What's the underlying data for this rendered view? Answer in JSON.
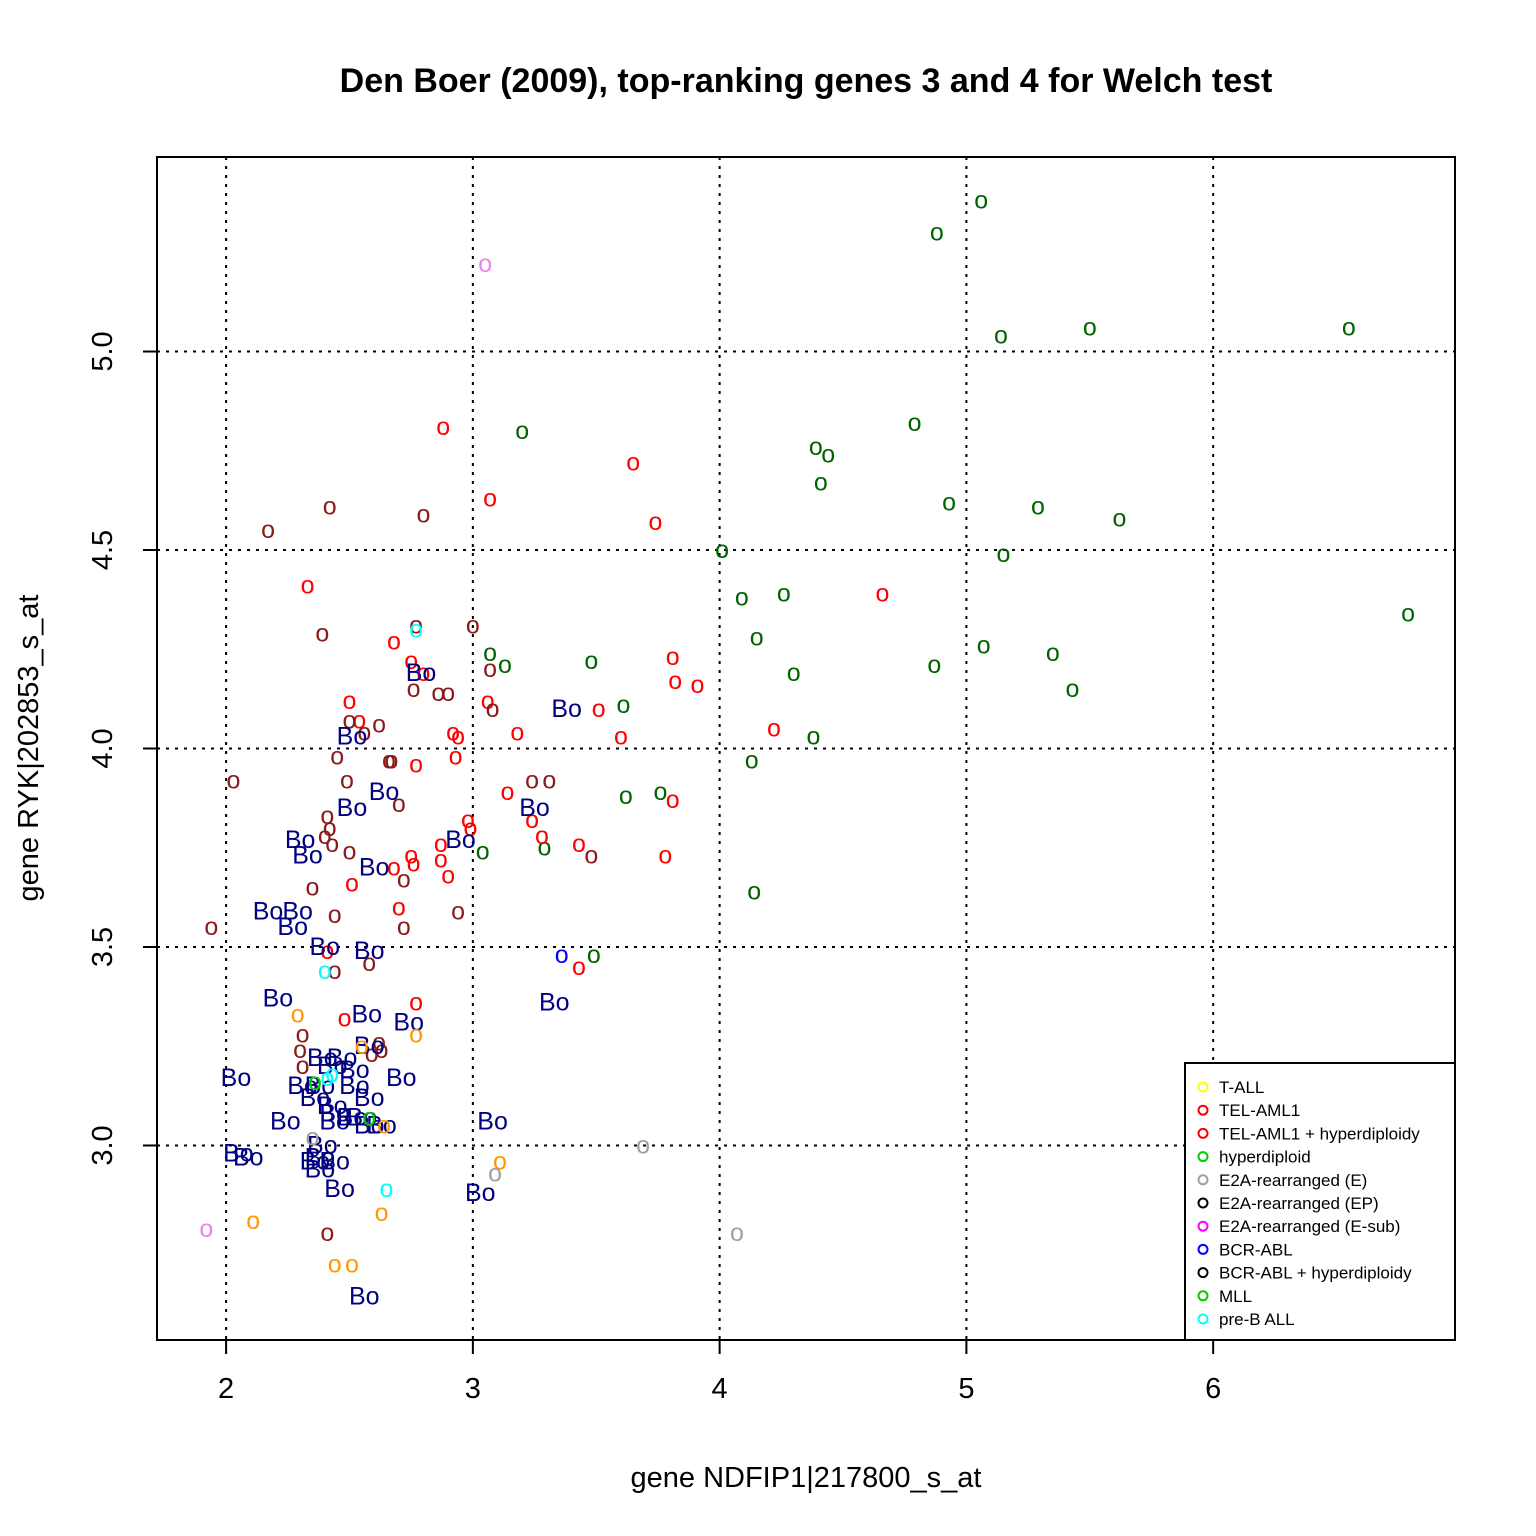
{
  "chart_data": {
    "type": "scatter",
    "title": "Den Boer (2009), top-ranking genes 3 and 4 for Welch test",
    "xlabel": "gene NDFIP1|217800_s_at",
    "ylabel": "gene RYK|202853_s_at",
    "xlim": [
      1.72,
      6.98
    ],
    "ylim": [
      2.51,
      5.49
    ],
    "xticks": [
      "2",
      "3",
      "4",
      "5",
      "6"
    ],
    "yticks": [
      "3.0",
      "3.5",
      "4.0",
      "4.5",
      "5.0"
    ],
    "grid": true,
    "legend_position": "bottom-right",
    "colors": {
      "darkgreen": "#006400",
      "red": "#ff0000",
      "brown": "#8b1a1a",
      "navy": "#000080",
      "orange": "#ff9900",
      "cyan": "#00ffff",
      "gray": "#a0a0a0",
      "violet": "#ee82ee",
      "blue": "#0000ff",
      "green": "#00cc00"
    },
    "legend": [
      {
        "label": "T-ALL",
        "color": "#ffff00"
      },
      {
        "label": "TEL-AML1",
        "color": "#ff0000"
      },
      {
        "label": "TEL-AML1 + hyperdiploidy",
        "color": "#ff0000"
      },
      {
        "label": "hyperdiploid",
        "color": "#00cc00"
      },
      {
        "label": "E2A-rearranged (E)",
        "color": "#a0a0a0"
      },
      {
        "label": "E2A-rearranged (EP)",
        "color": "#000000"
      },
      {
        "label": "E2A-rearranged (E-sub)",
        "color": "#ff00ff"
      },
      {
        "label": "BCR-ABL",
        "color": "#0000ff"
      },
      {
        "label": "BCR-ABL + hyperdiploidy",
        "color": "#000000"
      },
      {
        "label": "MLL",
        "color": "#00cc00"
      },
      {
        "label": "pre-B ALL",
        "color": "#00ffff"
      }
    ],
    "series": [
      {
        "marker": "o",
        "color": "darkgreen",
        "points": [
          [
            5.06,
            5.38
          ],
          [
            4.88,
            5.3
          ],
          [
            5.14,
            5.04
          ],
          [
            5.5,
            5.06
          ],
          [
            6.55,
            5.06
          ],
          [
            3.2,
            4.8
          ],
          [
            4.79,
            4.82
          ],
          [
            4.39,
            4.76
          ],
          [
            4.44,
            4.74
          ],
          [
            4.41,
            4.67
          ],
          [
            4.93,
            4.62
          ],
          [
            5.29,
            4.61
          ],
          [
            5.62,
            4.58
          ],
          [
            4.01,
            4.5
          ],
          [
            5.15,
            4.49
          ],
          [
            4.09,
            4.38
          ],
          [
            4.26,
            4.39
          ],
          [
            6.79,
            4.34
          ],
          [
            4.15,
            4.28
          ],
          [
            5.07,
            4.26
          ],
          [
            5.35,
            4.24
          ],
          [
            3.07,
            4.24
          ],
          [
            3.13,
            4.21
          ],
          [
            3.48,
            4.22
          ],
          [
            4.3,
            4.19
          ],
          [
            4.87,
            4.21
          ],
          [
            5.43,
            4.15
          ],
          [
            3.61,
            4.11
          ],
          [
            4.38,
            4.03
          ],
          [
            4.13,
            3.97
          ],
          [
            3.62,
            3.88
          ],
          [
            3.76,
            3.89
          ],
          [
            3.04,
            3.74
          ],
          [
            3.29,
            3.75
          ],
          [
            4.14,
            3.64
          ],
          [
            3.49,
            3.48
          ]
        ]
      },
      {
        "marker": "o",
        "color": "red",
        "points": [
          [
            2.88,
            4.81
          ],
          [
            3.65,
            4.72
          ],
          [
            3.07,
            4.63
          ],
          [
            3.74,
            4.57
          ],
          [
            2.33,
            4.41
          ],
          [
            4.66,
            4.39
          ],
          [
            2.68,
            4.27
          ],
          [
            2.75,
            4.22
          ],
          [
            2.8,
            4.19
          ],
          [
            3.81,
            4.23
          ],
          [
            3.82,
            4.17
          ],
          [
            3.91,
            4.16
          ],
          [
            2.5,
            4.12
          ],
          [
            3.06,
            4.12
          ],
          [
            3.51,
            4.1
          ],
          [
            2.54,
            4.07
          ],
          [
            2.92,
            4.04
          ],
          [
            2.94,
            4.03
          ],
          [
            3.18,
            4.04
          ],
          [
            3.6,
            4.03
          ],
          [
            4.22,
            4.05
          ],
          [
            2.93,
            3.98
          ],
          [
            2.77,
            3.96
          ],
          [
            3.14,
            3.89
          ],
          [
            3.81,
            3.87
          ],
          [
            2.98,
            3.82
          ],
          [
            2.99,
            3.8
          ],
          [
            3.24,
            3.82
          ],
          [
            3.28,
            3.78
          ],
          [
            3.43,
            3.76
          ],
          [
            3.78,
            3.73
          ],
          [
            2.87,
            3.76
          ],
          [
            2.75,
            3.73
          ],
          [
            2.76,
            3.71
          ],
          [
            2.68,
            3.7
          ],
          [
            2.87,
            3.72
          ],
          [
            2.51,
            3.66
          ],
          [
            2.9,
            3.68
          ],
          [
            2.7,
            3.6
          ],
          [
            2.41,
            3.49
          ],
          [
            3.43,
            3.45
          ],
          [
            2.77,
            3.36
          ],
          [
            2.48,
            3.32
          ]
        ]
      },
      {
        "marker": "o",
        "color": "brown",
        "points": [
          [
            2.42,
            4.61
          ],
          [
            2.8,
            4.59
          ],
          [
            2.17,
            4.55
          ],
          [
            2.39,
            4.29
          ],
          [
            2.77,
            4.31
          ],
          [
            3.0,
            4.31
          ],
          [
            2.76,
            4.15
          ],
          [
            2.86,
            4.14
          ],
          [
            2.9,
            4.14
          ],
          [
            3.07,
            4.2
          ],
          [
            3.08,
            4.1
          ],
          [
            2.5,
            4.07
          ],
          [
            2.62,
            4.06
          ],
          [
            2.56,
            4.04
          ],
          [
            2.45,
            3.98
          ],
          [
            2.66,
            3.97
          ],
          [
            2.67,
            3.97
          ],
          [
            2.03,
            3.92
          ],
          [
            2.49,
            3.92
          ],
          [
            3.24,
            3.92
          ],
          [
            3.31,
            3.92
          ],
          [
            2.7,
            3.86
          ],
          [
            2.41,
            3.83
          ],
          [
            2.42,
            3.8
          ],
          [
            2.4,
            3.78
          ],
          [
            2.43,
            3.76
          ],
          [
            2.5,
            3.74
          ],
          [
            3.48,
            3.73
          ],
          [
            2.35,
            3.65
          ],
          [
            2.72,
            3.67
          ],
          [
            2.44,
            3.58
          ],
          [
            2.94,
            3.59
          ],
          [
            1.94,
            3.55
          ],
          [
            2.72,
            3.55
          ],
          [
            2.58,
            3.46
          ],
          [
            2.44,
            3.44
          ],
          [
            2.31,
            3.28
          ],
          [
            2.62,
            3.26
          ],
          [
            2.63,
            3.24
          ],
          [
            2.3,
            3.24
          ],
          [
            2.59,
            3.23
          ],
          [
            2.31,
            3.2
          ],
          [
            2.41,
            2.78
          ]
        ]
      },
      {
        "marker": "Bo",
        "color": "navy",
        "points": [
          [
            2.79,
            4.19
          ],
          [
            3.38,
            4.1
          ],
          [
            2.51,
            4.03
          ],
          [
            2.64,
            3.89
          ],
          [
            2.51,
            3.85
          ],
          [
            3.25,
            3.85
          ],
          [
            2.3,
            3.77
          ],
          [
            2.95,
            3.77
          ],
          [
            2.33,
            3.73
          ],
          [
            2.6,
            3.7
          ],
          [
            2.17,
            3.59
          ],
          [
            2.29,
            3.59
          ],
          [
            2.27,
            3.55
          ],
          [
            2.4,
            3.5
          ],
          [
            2.58,
            3.49
          ],
          [
            2.21,
            3.37
          ],
          [
            3.33,
            3.36
          ],
          [
            2.57,
            3.33
          ],
          [
            2.74,
            3.31
          ],
          [
            2.58,
            3.25
          ],
          [
            2.39,
            3.22
          ],
          [
            2.47,
            3.22
          ],
          [
            2.43,
            3.2
          ],
          [
            2.52,
            3.19
          ],
          [
            2.04,
            3.17
          ],
          [
            2.71,
            3.17
          ],
          [
            2.31,
            3.15
          ],
          [
            2.38,
            3.15
          ],
          [
            2.52,
            3.15
          ],
          [
            2.58,
            3.12
          ],
          [
            2.36,
            3.12
          ],
          [
            2.43,
            3.1
          ],
          [
            2.44,
            3.08
          ],
          [
            2.51,
            3.07
          ],
          [
            2.55,
            3.07
          ],
          [
            2.44,
            3.06
          ],
          [
            2.58,
            3.05
          ],
          [
            2.63,
            3.05
          ],
          [
            2.24,
            3.06
          ],
          [
            3.08,
            3.06
          ],
          [
            2.39,
            3.0
          ],
          [
            2.05,
            2.98
          ],
          [
            2.09,
            2.97
          ],
          [
            2.38,
            2.97
          ],
          [
            2.44,
            2.96
          ],
          [
            2.38,
            2.94
          ],
          [
            2.36,
            2.96
          ],
          [
            2.46,
            2.89
          ],
          [
            3.03,
            2.88
          ],
          [
            2.56,
            2.62
          ]
        ]
      },
      {
        "marker": "o",
        "color": "orange",
        "points": [
          [
            2.29,
            3.33
          ],
          [
            2.77,
            3.28
          ],
          [
            2.55,
            3.25
          ],
          [
            2.64,
            3.05
          ],
          [
            3.11,
            2.96
          ],
          [
            2.11,
            2.81
          ],
          [
            2.63,
            2.83
          ],
          [
            2.44,
            2.7
          ],
          [
            2.51,
            2.7
          ]
        ]
      },
      {
        "marker": "o",
        "color": "cyan",
        "points": [
          [
            2.77,
            4.3
          ],
          [
            2.4,
            3.44
          ],
          [
            2.41,
            3.17
          ],
          [
            2.43,
            3.18
          ],
          [
            2.65,
            2.89
          ]
        ]
      },
      {
        "marker": "o",
        "color": "gray",
        "points": [
          [
            2.35,
            3.02
          ],
          [
            3.69,
            3.0
          ],
          [
            3.09,
            2.93
          ],
          [
            4.07,
            2.78
          ]
        ]
      },
      {
        "marker": "o",
        "color": "violet",
        "points": [
          [
            3.05,
            5.22
          ],
          [
            1.92,
            2.79
          ]
        ]
      },
      {
        "marker": "o",
        "color": "blue",
        "points": [
          [
            3.36,
            3.48
          ]
        ]
      },
      {
        "marker": "o",
        "color": "green",
        "points": [
          [
            2.36,
            3.16
          ],
          [
            2.58,
            3.07
          ]
        ]
      }
    ]
  }
}
